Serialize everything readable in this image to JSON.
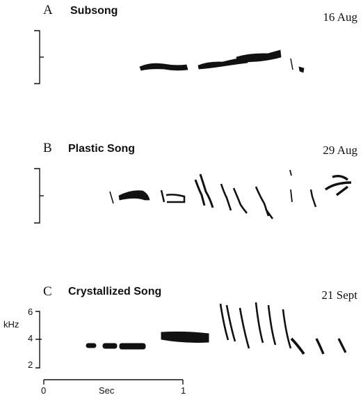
{
  "panels": [
    {
      "letter": "A",
      "title": "Subsong",
      "date": "16  Aug"
    },
    {
      "letter": "B",
      "title": "Plastic Song",
      "date": "29  Aug"
    },
    {
      "letter": "C",
      "title": "Crystallized Song",
      "date": "21  Sept"
    }
  ],
  "freq_axis": {
    "unit": "kHz",
    "ticks": [
      "6",
      "4",
      "2"
    ]
  },
  "time_axis": {
    "unit": "Sec",
    "ticks": [
      "0",
      "1"
    ]
  }
}
